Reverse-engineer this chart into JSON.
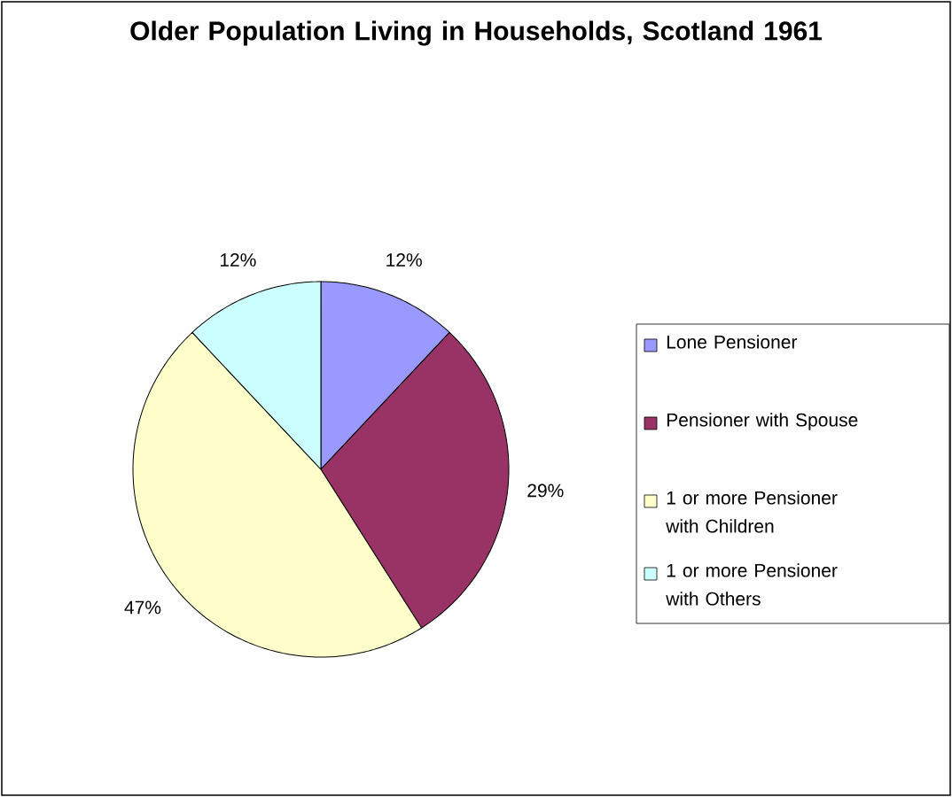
{
  "chart_data": {
    "type": "pie",
    "title": "Older Population Living in Households, Scotland 1961",
    "categories": [
      "Lone Pensioner",
      "Pensioner with Spouse",
      "1 or more Pensioner with Children",
      "1 or more Pensioner with Others"
    ],
    "values": [
      12,
      29,
      47,
      12
    ],
    "colors": [
      "#9999ff",
      "#993366",
      "#ffffcc",
      "#ccffff"
    ],
    "value_labels": [
      "12%",
      "29%",
      "47%",
      "12%"
    ],
    "legend": "right"
  }
}
